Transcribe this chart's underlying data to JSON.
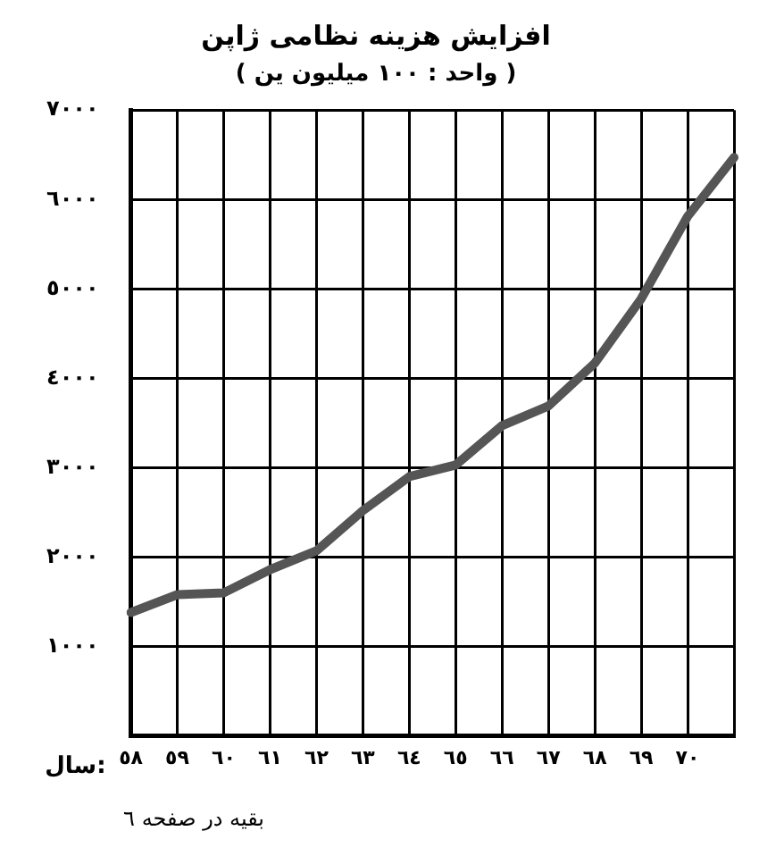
{
  "chart_data": {
    "type": "line",
    "title": "افزایش هزینه نظامی ژاپن",
    "subtitle": "( واحد : ١٠٠ میلیون ین )",
    "xlabel": "سال:",
    "categories": [
      "٥٨",
      "٥٩",
      "٦٠",
      "٦١",
      "٦٢",
      "٦٣",
      "٦٤",
      "٦٥",
      "٦٦",
      "٦٧",
      "٦٨",
      "٦٩",
      "٧٠",
      null
    ],
    "series": [
      {
        "color": "#555555",
        "values": [
          1380,
          1580,
          1600,
          1860,
          2070,
          2520,
          2900,
          3030,
          3470,
          3690,
          4170,
          4890,
          5810,
          6470
        ]
      }
    ],
    "ylim": [
      0,
      7000
    ],
    "yticks": [
      {
        "value": 1000,
        "label": "١٠٠٠"
      },
      {
        "value": 2000,
        "label": "٢٠٠٠"
      },
      {
        "value": 3000,
        "label": "٣٠٠٠"
      },
      {
        "value": 4000,
        "label": "٤٠٠٠"
      },
      {
        "value": 5000,
        "label": "٥٠٠٠"
      },
      {
        "value": 6000,
        "label": "٦٠٠٠"
      },
      {
        "value": 7000,
        "label": "٧٠٠٠"
      }
    ],
    "grid": true,
    "legend": false,
    "marker": "none",
    "line_style": "solid",
    "annotations": [
      "بقیه در صفحه ٦"
    ]
  }
}
